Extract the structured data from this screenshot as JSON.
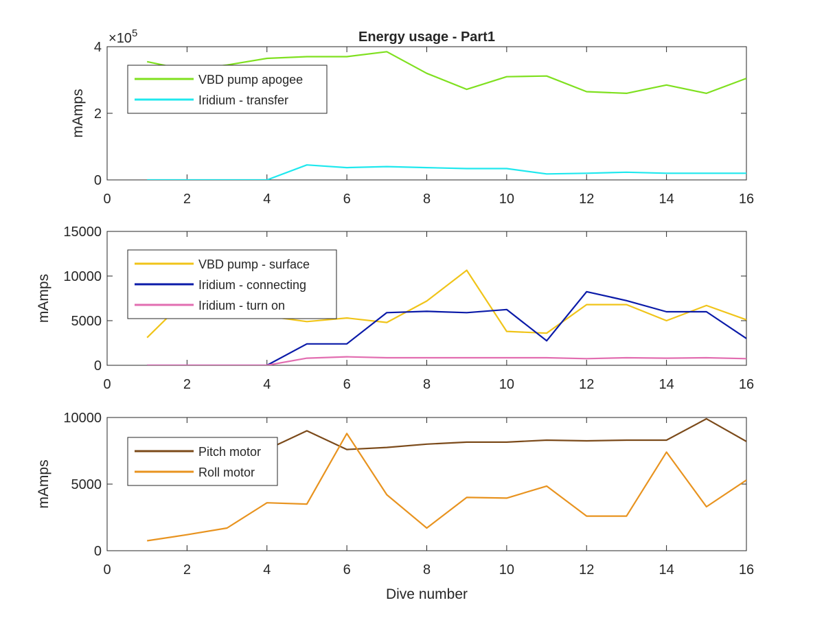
{
  "chart_data": [
    {
      "type": "line",
      "title": "Energy usage - Part1",
      "xlabel": "",
      "ylabel": "mAmps",
      "xlim": [
        0,
        16
      ],
      "ylim": [
        0,
        4
      ],
      "x_ticks": [
        "0",
        "2",
        "4",
        "6",
        "8",
        "10",
        "12",
        "14",
        "16"
      ],
      "y_ticks": [
        "0",
        "2",
        "4"
      ],
      "y_exponent": {
        "base": "10",
        "power": "5",
        "prefix": "×"
      },
      "legend_position": "top-left",
      "series": [
        {
          "name": "VBD pump apogee",
          "color": "#7fe01f",
          "x": [
            1,
            2,
            3,
            4,
            5,
            6,
            7,
            8,
            9,
            10,
            11,
            12,
            13,
            14,
            15,
            16
          ],
          "y": [
            3.55,
            3.3,
            3.45,
            3.65,
            3.7,
            3.7,
            3.85,
            3.2,
            2.72,
            3.1,
            3.12,
            2.65,
            2.6,
            2.85,
            2.6,
            3.05
          ]
        },
        {
          "name": "Iridium - transfer",
          "color": "#1fe8ee",
          "x": [
            1,
            2,
            3,
            4,
            5,
            6,
            7,
            8,
            9,
            10,
            11,
            12,
            13,
            14,
            15,
            16
          ],
          "y": [
            0,
            0,
            0,
            0,
            0.45,
            0.37,
            0.4,
            0.37,
            0.34,
            0.34,
            0.18,
            0.2,
            0.23,
            0.2,
            0.2,
            0.2
          ]
        }
      ]
    },
    {
      "type": "line",
      "title": "",
      "xlabel": "",
      "ylabel": "mAmps",
      "xlim": [
        0,
        16
      ],
      "ylim": [
        0,
        15000
      ],
      "x_ticks": [
        "0",
        "2",
        "4",
        "6",
        "8",
        "10",
        "12",
        "14",
        "16"
      ],
      "y_ticks": [
        "0",
        "5000",
        "10000",
        "15000"
      ],
      "legend_position": "top-left",
      "series": [
        {
          "name": "VBD pump - surface",
          "color": "#f0c419",
          "x": [
            1,
            2,
            3,
            4,
            5,
            6,
            7,
            8,
            9,
            10,
            11,
            12,
            13,
            14,
            15,
            16
          ],
          "y": [
            3100,
            7500,
            6500,
            5500,
            4900,
            5300,
            4800,
            7200,
            10650,
            3800,
            3600,
            6800,
            6800,
            5000,
            6700,
            5100
          ]
        },
        {
          "name": "Iridium - connecting",
          "color": "#0a1aa8",
          "x": [
            1,
            2,
            3,
            4,
            5,
            6,
            7,
            8,
            9,
            10,
            11,
            12,
            13,
            14,
            15,
            16
          ],
          "y": [
            0,
            0,
            0,
            0,
            2400,
            2400,
            5900,
            6050,
            5900,
            6250,
            2750,
            8250,
            7250,
            6000,
            6000,
            3000
          ]
        },
        {
          "name": "Iridium - turn on",
          "color": "#e26db0",
          "x": [
            1,
            2,
            3,
            4,
            5,
            6,
            7,
            8,
            9,
            10,
            11,
            12,
            13,
            14,
            15,
            16
          ],
          "y": [
            0,
            0,
            0,
            0,
            800,
            950,
            850,
            850,
            850,
            850,
            850,
            750,
            850,
            800,
            850,
            750
          ]
        }
      ]
    },
    {
      "type": "line",
      "title": "",
      "xlabel": "Dive number",
      "ylabel": "mAmps",
      "xlim": [
        0,
        16
      ],
      "ylim": [
        0,
        10000
      ],
      "x_ticks": [
        "0",
        "2",
        "4",
        "6",
        "8",
        "10",
        "12",
        "14",
        "16"
      ],
      "y_ticks": [
        "0",
        "5000",
        "10000"
      ],
      "legend_position": "top-left",
      "series": [
        {
          "name": "Pitch motor",
          "color": "#7b4a1a",
          "x": [
            1,
            2,
            3,
            4,
            5,
            6,
            7,
            8,
            9,
            10,
            11,
            12,
            13,
            14,
            15,
            16
          ],
          "y": [
            7300,
            7400,
            7500,
            7600,
            9000,
            7600,
            7750,
            8000,
            8150,
            8150,
            8300,
            8250,
            8300,
            8300,
            9900,
            8200
          ]
        },
        {
          "name": "Roll motor",
          "color": "#e8931f",
          "x": [
            1,
            2,
            3,
            4,
            5,
            6,
            7,
            8,
            9,
            10,
            11,
            12,
            13,
            14,
            15,
            16
          ],
          "y": [
            750,
            1200,
            1700,
            3600,
            3500,
            8800,
            4200,
            1700,
            4000,
            3950,
            4850,
            2600,
            2600,
            7400,
            3300,
            5300
          ]
        }
      ]
    }
  ]
}
